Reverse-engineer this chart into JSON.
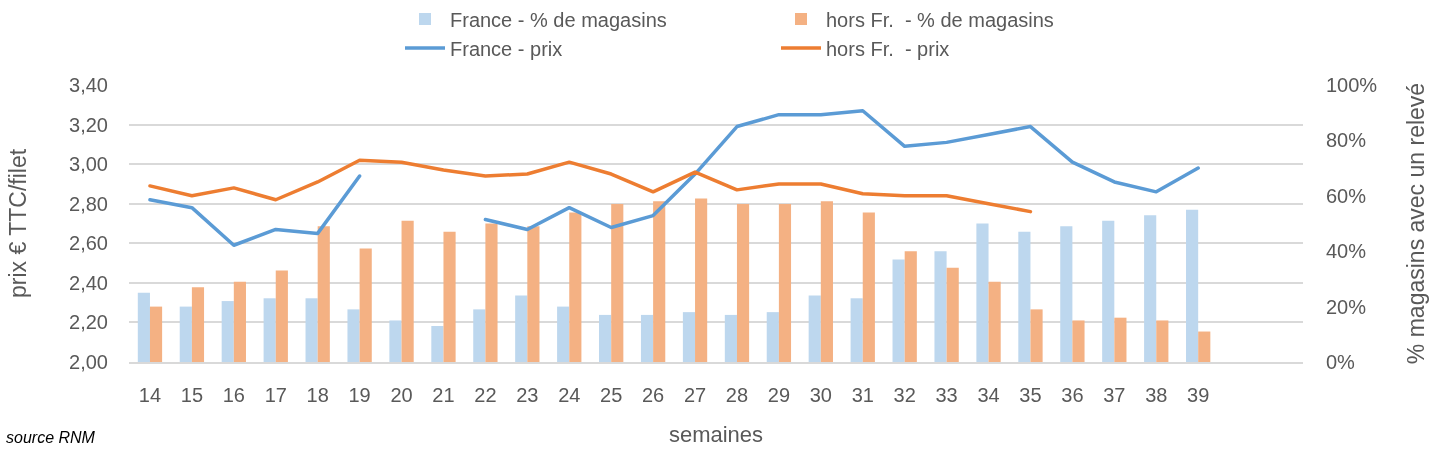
{
  "chart_data": {
    "type": "bar",
    "categories": [
      "14",
      "15",
      "16",
      "17",
      "18",
      "19",
      "20",
      "21",
      "22",
      "23",
      "24",
      "25",
      "26",
      "27",
      "28",
      "29",
      "30",
      "31",
      "32",
      "33",
      "34",
      "35",
      "36",
      "37",
      "38",
      "39",
      null,
      null
    ],
    "xlabel": "semaines",
    "ylabel": "prix € TTC/filet",
    "y2label": "% magasins avec un relevé",
    "ylim": [
      2.0,
      3.4
    ],
    "yticks": [
      {
        "value": 2.0,
        "label": "2,00"
      },
      {
        "value": 2.2,
        "label": "2,20"
      },
      {
        "value": 2.4,
        "label": "2,40"
      },
      {
        "value": 2.6,
        "label": "2,60"
      },
      {
        "value": 2.8,
        "label": "2,80"
      },
      {
        "value": 3.0,
        "label": "3,00"
      },
      {
        "value": 3.2,
        "label": "3,20"
      },
      {
        "value": 3.4,
        "label": "3,40"
      }
    ],
    "y2lim": [
      0,
      100
    ],
    "y2ticks": [
      {
        "value": 0,
        "label": "0%"
      },
      {
        "value": 20,
        "label": "20%"
      },
      {
        "value": 40,
        "label": "40%"
      },
      {
        "value": 60,
        "label": "60%"
      },
      {
        "value": 80,
        "label": "80%"
      },
      {
        "value": 100,
        "label": "100%"
      }
    ],
    "grid": "y",
    "legend": "top",
    "line_style": "solid",
    "series": [
      {
        "name": "France - % de magasins",
        "axis": "y2",
        "color": "#bdd7ee",
        "values": [
          25,
          20,
          22,
          23,
          23,
          19,
          15,
          13,
          19,
          24,
          20,
          17,
          17,
          18,
          17,
          18,
          24,
          23,
          37,
          40,
          50,
          47,
          49,
          51,
          53,
          55,
          null,
          null
        ]
      },
      {
        "name": "hors Fr.  - % de magasins",
        "axis": "y2",
        "color": "#f4b183",
        "values": [
          20,
          27,
          29,
          33,
          49,
          41,
          51,
          47,
          50,
          49,
          54,
          57,
          58,
          59,
          57,
          57,
          58,
          54,
          40,
          34,
          29,
          19,
          15,
          16,
          15,
          11,
          null,
          null
        ]
      },
      {
        "name": "France - prix",
        "type": "line",
        "axis": "y",
        "color": "#5b9bd5",
        "values": [
          2.82,
          2.78,
          2.59,
          2.67,
          2.65,
          2.94,
          null,
          null,
          2.72,
          2.67,
          2.78,
          2.68,
          2.74,
          2.95,
          3.19,
          3.25,
          3.25,
          3.27,
          3.09,
          3.11,
          3.15,
          3.19,
          3.01,
          2.91,
          2.86,
          2.98,
          null,
          null
        ]
      },
      {
        "name": "hors Fr.  - prix",
        "type": "line",
        "axis": "y",
        "color": "#ed7d31",
        "values": [
          2.89,
          2.84,
          2.88,
          2.82,
          2.91,
          3.02,
          3.01,
          2.97,
          2.94,
          2.95,
          3.01,
          2.95,
          2.86,
          2.96,
          2.87,
          2.9,
          2.9,
          2.85,
          2.84,
          2.84,
          2.8,
          2.76,
          null,
          null,
          null,
          null,
          null,
          null
        ]
      }
    ],
    "annotations": [
      "source RNM"
    ]
  }
}
